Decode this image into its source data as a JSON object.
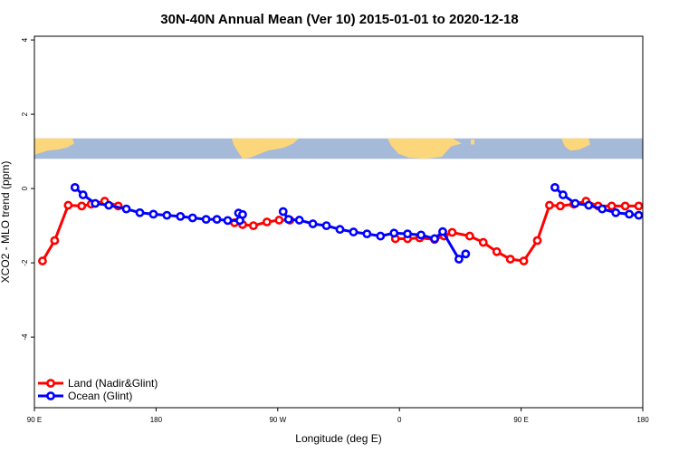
{
  "chart_data": {
    "type": "line",
    "title": "30N-40N Annual Mean (Ver 10)   2015-01-01 to 2020-12-18",
    "xlabel": "Longitude (deg E)",
    "ylabel": "XCO2 - MLO trend (ppm)",
    "x_ticks": [
      {
        "value": 90,
        "label": "90 E"
      },
      {
        "value": 180,
        "label": "180"
      },
      {
        "value": 270,
        "label": "90 W"
      },
      {
        "value": 360,
        "label": "0"
      },
      {
        "value": 450,
        "label": "90 E"
      },
      {
        "value": 540,
        "label": "180"
      }
    ],
    "y_ticks": [
      {
        "value": -4,
        "label": "-4"
      },
      {
        "value": -2,
        "label": "-2"
      },
      {
        "value": 0,
        "label": "0"
      },
      {
        "value": 2,
        "label": "2"
      },
      {
        "value": 4,
        "label": "4"
      }
    ],
    "xlim": [
      90,
      540
    ],
    "ylim": [
      -5.9,
      4.1
    ],
    "grid": false,
    "legend_position": "bottom-left",
    "map_strip": {
      "ymin": 0.8,
      "ymax": 1.35,
      "ocean_color": "#a5b9d9",
      "land_color": "#fcd67a"
    },
    "series": [
      {
        "name": "Land (Nadir&Glint)",
        "color": "#ff0000",
        "segments": [
          {
            "x": [
              96,
              105,
              115,
              125,
              132,
              142,
              152
            ],
            "y": [
              -1.95,
              -1.4,
              -0.45,
              -0.47,
              -0.42,
              -0.34,
              -0.47
            ]
          },
          {
            "x": [
              238,
              244,
              252,
              262,
              271,
              279
            ],
            "y": [
              -0.92,
              -0.97,
              -1.0,
              -0.9,
              -0.85,
              -0.85
            ]
          },
          {
            "x": [
              357,
              366,
              375,
              386,
              393,
              399,
              412,
              422,
              432,
              442,
              452,
              462,
              471,
              479,
              489,
              498,
              507,
              517,
              527,
              537
            ],
            "y": [
              -1.35,
              -1.35,
              -1.33,
              -1.37,
              -1.28,
              -1.18,
              -1.28,
              -1.45,
              -1.7,
              -1.9,
              -1.95,
              -1.4,
              -0.45,
              -0.47,
              -0.42,
              -0.34,
              -0.47,
              -0.47,
              -0.47,
              -0.47
            ]
          }
        ]
      },
      {
        "name": "Ocean (Glint)",
        "color": "#0000ff",
        "segments": [
          {
            "x": [
              120,
              126,
              135,
              145,
              158,
              168,
              178,
              188,
              198,
              207,
              217,
              225,
              233,
              242
            ],
            "y": [
              0.03,
              -0.17,
              -0.4,
              -0.45,
              -0.55,
              -0.65,
              -0.69,
              -0.72,
              -0.75,
              -0.79,
              -0.83,
              -0.83,
              -0.86,
              -0.86
            ]
          },
          {
            "x": [
              241,
              244
            ],
            "y": [
              -0.66,
              -0.7
            ]
          },
          {
            "x": [
              274,
              278,
              286,
              296,
              306,
              316,
              326,
              336,
              346,
              356,
              366,
              376,
              386,
              392,
              404,
              409
            ],
            "y": [
              -0.62,
              -0.83,
              -0.85,
              -0.95,
              -1.0,
              -1.1,
              -1.17,
              -1.22,
              -1.28,
              -1.2,
              -1.22,
              -1.25,
              -1.35,
              -1.16,
              -1.9,
              -1.76
            ]
          },
          {
            "x": [
              475,
              481,
              490,
              500,
              510,
              520,
              530,
              537
            ],
            "y": [
              0.03,
              -0.17,
              -0.4,
              -0.45,
              -0.55,
              -0.65,
              -0.69,
              -0.72
            ]
          }
        ]
      }
    ]
  }
}
